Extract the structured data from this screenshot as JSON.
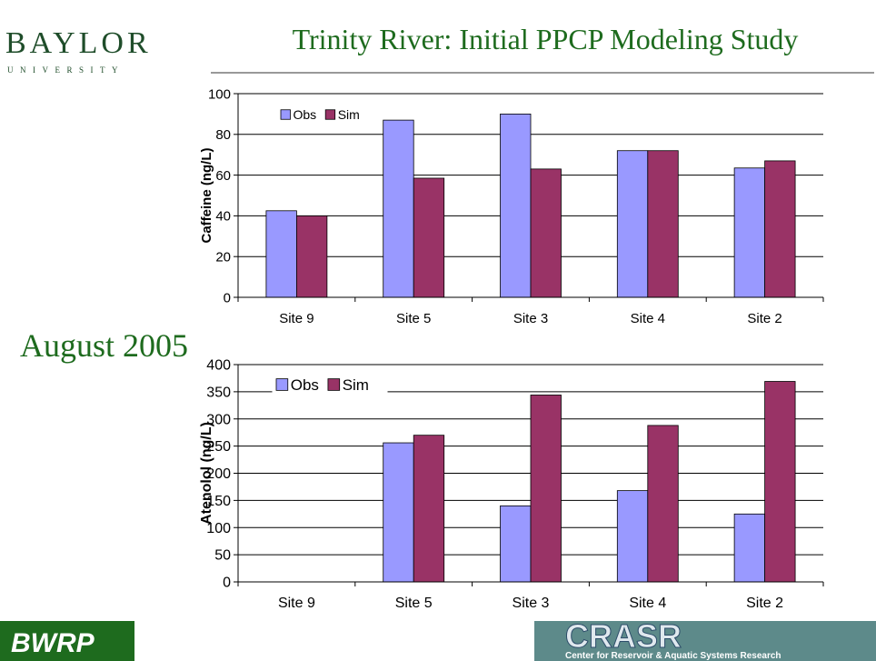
{
  "slide": {
    "logo": "BAYLOR",
    "logo_sub": "UNIVERSITY",
    "title": "Trinity River: Initial PPCP Modeling Study",
    "date": "August 2005",
    "footer_left": "BWRP",
    "footer_right": "CRASR",
    "footer_right_sub": "Center for Reservoir & Aquatic Systems Research"
  },
  "chart_data": [
    {
      "type": "bar",
      "ylabel": "Caffeine (ng/L)",
      "categories": [
        "Site 9",
        "Site 5",
        "Site 3",
        "Site 4",
        "Site 2"
      ],
      "series": [
        {
          "name": "Obs",
          "color": "#9999ff",
          "values": [
            42.5,
            87,
            90,
            72,
            63.5
          ]
        },
        {
          "name": "Sim",
          "color": "#993366",
          "values": [
            40,
            58.5,
            63,
            72,
            67
          ]
        }
      ],
      "ylim": [
        0,
        100
      ],
      "yticks": [
        0,
        20,
        40,
        60,
        80,
        100
      ],
      "grid": true,
      "legend": "top-left"
    },
    {
      "type": "bar",
      "ylabel": "Atenolol (ng/L)",
      "categories": [
        "Site 9",
        "Site 5",
        "Site 3",
        "Site 4",
        "Site 2"
      ],
      "series": [
        {
          "name": "Obs",
          "color": "#9999ff",
          "values": [
            0,
            256,
            140,
            168,
            125
          ]
        },
        {
          "name": "Sim",
          "color": "#993366",
          "values": [
            0,
            270,
            344,
            288,
            369
          ]
        }
      ],
      "ylim": [
        0,
        400
      ],
      "yticks": [
        0,
        50,
        100,
        150,
        200,
        250,
        300,
        350,
        400
      ],
      "grid": true,
      "legend": "top-left"
    }
  ]
}
